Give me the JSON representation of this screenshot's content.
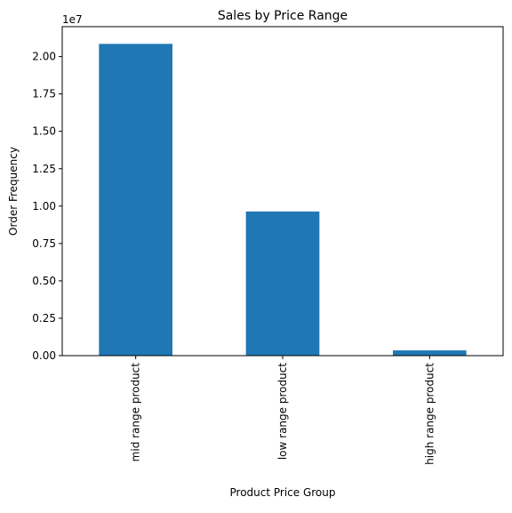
{
  "chart_data": {
    "type": "bar",
    "title": "Sales by Price Range",
    "xlabel": "Product Price Group",
    "ylabel": "Order Frequency",
    "offset_label": "1e7",
    "categories": [
      "mid range product",
      "low range product",
      "high range product"
    ],
    "values": [
      20850000,
      9640000,
      350000
    ],
    "ylim": [
      0,
      22000000
    ],
    "yticks": [
      0,
      2500000,
      5000000,
      7500000,
      10000000,
      12500000,
      15000000,
      17500000,
      20000000
    ],
    "ytick_labels": [
      "0.00",
      "0.25",
      "0.50",
      "0.75",
      "1.00",
      "1.25",
      "1.50",
      "1.75",
      "2.00"
    ],
    "bar_color": "#1f77b4",
    "grid": false,
    "legend": "none"
  }
}
